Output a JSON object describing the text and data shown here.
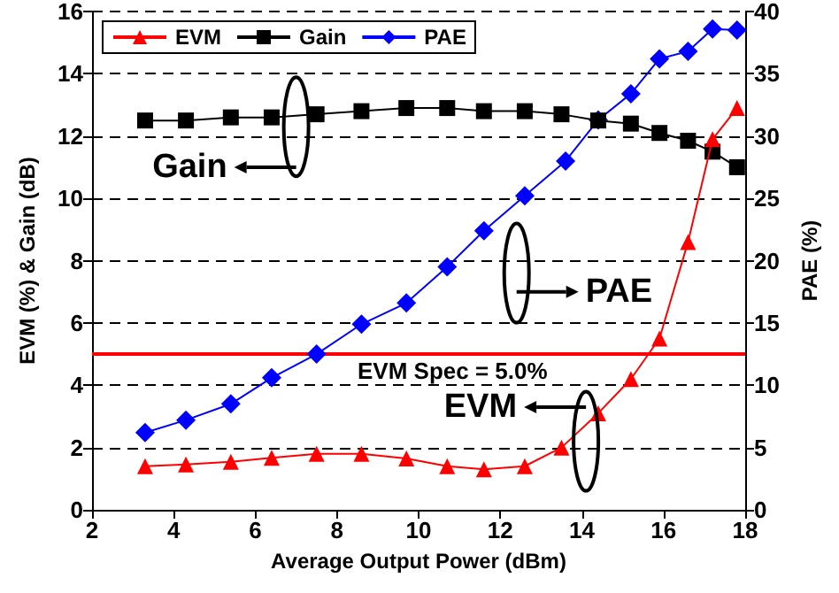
{
  "chart_data": {
    "type": "line",
    "xlabel": "Average Output Power (dBm)",
    "ylabel": "EVM (%) & Gain (dB)",
    "y2label": "PAE (%)",
    "xlim": [
      2,
      18
    ],
    "xticks": [
      2,
      4,
      6,
      8,
      10,
      12,
      14,
      16,
      18
    ],
    "ylim": [
      0,
      16
    ],
    "yticks": [
      0,
      2,
      4,
      6,
      8,
      10,
      12,
      14,
      16
    ],
    "y2lim": [
      0,
      40
    ],
    "y2ticks": [
      0,
      5,
      10,
      15,
      20,
      25,
      30,
      35,
      40
    ],
    "grid": "y",
    "legend": "top left",
    "series": [
      {
        "name": "EVM",
        "color": "#ff0000",
        "marker": "triangle",
        "x": [
          3.3,
          4.3,
          5.4,
          6.4,
          7.5,
          8.6,
          9.7,
          10.7,
          11.6,
          12.6,
          13.5,
          14.4,
          15.2,
          15.9,
          16.6,
          17.2,
          17.8
        ],
        "values": [
          1.4,
          1.46,
          1.54,
          1.67,
          1.8,
          1.8,
          1.65,
          1.4,
          1.3,
          1.4,
          2.0,
          3.1,
          4.2,
          5.5,
          8.6,
          11.9,
          12.9
        ]
      },
      {
        "name": "Gain",
        "color": "#000000",
        "marker": "square",
        "x": [
          3.3,
          4.3,
          5.4,
          6.4,
          7.5,
          8.6,
          9.7,
          10.7,
          11.6,
          12.6,
          13.5,
          14.4,
          15.2,
          15.9,
          16.6,
          17.2,
          17.8
        ],
        "values": [
          12.5,
          12.5,
          12.6,
          12.6,
          12.7,
          12.8,
          12.9,
          12.9,
          12.8,
          12.8,
          12.7,
          12.5,
          12.4,
          12.1,
          11.85,
          11.5,
          11.0
        ]
      },
      {
        "name": "PAE",
        "color": "#0000ff",
        "marker": "diamond",
        "axis": "y2",
        "x": [
          3.3,
          4.3,
          5.4,
          6.4,
          7.5,
          8.6,
          9.7,
          10.7,
          11.6,
          12.6,
          13.6,
          14.4,
          15.2,
          15.9,
          16.6,
          17.2,
          17.8
        ],
        "values": [
          6.2,
          7.2,
          8.5,
          10.6,
          12.5,
          14.9,
          16.6,
          19.5,
          22.4,
          25.2,
          28.0,
          31.3,
          33.4,
          36.2,
          36.8,
          38.6,
          38.5
        ]
      }
    ],
    "ref_lines": [
      {
        "axis": "y",
        "value": 5,
        "label": "EVM Spec = 5.0%",
        "color": "#ff0000"
      }
    ],
    "annotations": [
      "Gain",
      "PAE",
      "EVM"
    ]
  }
}
